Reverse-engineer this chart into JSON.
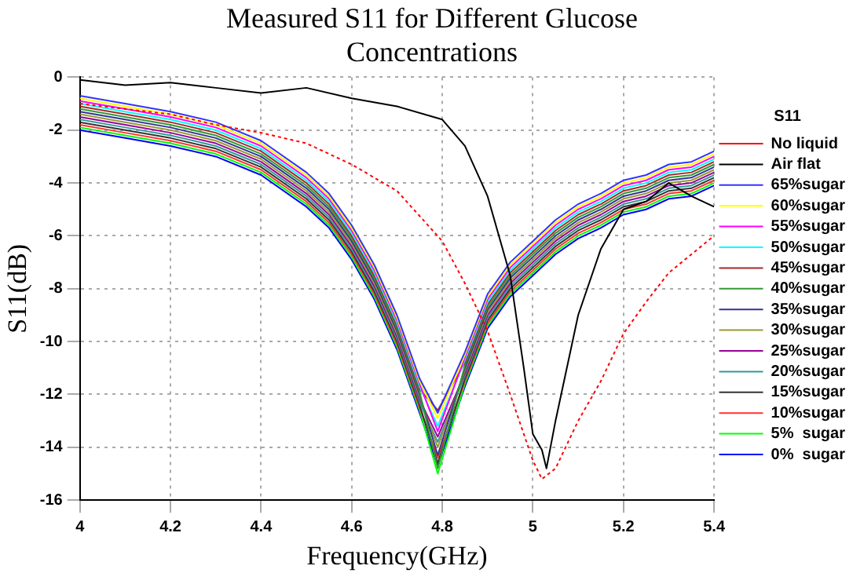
{
  "chart_data": {
    "type": "line",
    "title": "Measured S11 for Different Glucose Concentrations",
    "xlabel": "Frequency(GHz)",
    "ylabel": "S11(dB)",
    "legend_title": "S11",
    "legend": "right",
    "grid": true,
    "marker": "none",
    "xlim": [
      4,
      5.4
    ],
    "xticks": [
      4,
      4.2,
      4.4,
      4.6,
      4.8,
      5,
      5.2,
      5.4
    ],
    "ylim": [
      -16,
      0
    ],
    "yticks": [
      -16,
      -14,
      -12,
      -10,
      -8,
      -6,
      -4,
      -2,
      0
    ],
    "x": [
      4.0,
      4.1,
      4.2,
      4.3,
      4.4,
      4.5,
      4.55,
      4.6,
      4.65,
      4.7,
      4.75,
      4.79,
      4.85,
      4.9,
      4.95,
      5.0,
      5.05,
      5.1,
      5.15,
      5.2,
      5.25,
      5.3,
      5.35,
      5.4
    ],
    "series": [
      {
        "name": "No liquid",
        "color": "#ff0000",
        "line_style": "dotted",
        "x": [
          4.0,
          4.1,
          4.2,
          4.3,
          4.4,
          4.5,
          4.6,
          4.7,
          4.8,
          4.85,
          4.9,
          4.95,
          5.0,
          5.02,
          5.05,
          5.1,
          5.15,
          5.2,
          5.25,
          5.3,
          5.4
        ],
        "values": [
          -1.0,
          -1.2,
          -1.4,
          -1.8,
          -2.1,
          -2.5,
          -3.3,
          -4.3,
          -6.2,
          -7.8,
          -9.6,
          -12.0,
          -14.5,
          -15.2,
          -14.8,
          -13.0,
          -11.5,
          -9.7,
          -8.5,
          -7.4,
          -6.0
        ]
      },
      {
        "name": "Air flat",
        "color": "#000000",
        "line_style": "solid",
        "x": [
          4.0,
          4.1,
          4.2,
          4.3,
          4.4,
          4.5,
          4.6,
          4.7,
          4.8,
          4.85,
          4.9,
          4.95,
          4.98,
          5.0,
          5.02,
          5.03,
          5.05,
          5.1,
          5.15,
          5.2,
          5.25,
          5.3,
          5.35,
          5.4
        ],
        "values": [
          -0.1,
          -0.3,
          -0.2,
          -0.4,
          -0.6,
          -0.4,
          -0.8,
          -1.1,
          -1.6,
          -2.6,
          -4.5,
          -7.5,
          -11.0,
          -13.5,
          -14.1,
          -14.8,
          -13.0,
          -9.0,
          -6.5,
          -5.0,
          -4.7,
          -4.0,
          -4.5,
          -4.9
        ]
      },
      {
        "name": "65%sugar",
        "color": "#3333ff",
        "line_style": "solid",
        "values": [
          -0.7,
          -1.0,
          -1.3,
          -1.7,
          -2.4,
          -3.6,
          -4.4,
          -5.6,
          -7.1,
          -9.0,
          -11.4,
          -12.7,
          -10.4,
          -8.2,
          -7.0,
          -6.2,
          -5.4,
          -4.8,
          -4.4,
          -3.9,
          -3.7,
          -3.3,
          -3.2,
          -2.8
        ]
      },
      {
        "name": "60%sugar",
        "color": "#ffff00",
        "line_style": "solid",
        "values": [
          -0.8,
          -1.1,
          -1.4,
          -1.8,
          -2.5,
          -3.7,
          -4.5,
          -5.7,
          -7.2,
          -9.1,
          -11.5,
          -12.9,
          -10.5,
          -8.3,
          -7.1,
          -6.3,
          -5.5,
          -4.9,
          -4.5,
          -4.0,
          -3.8,
          -3.4,
          -3.3,
          -2.9
        ]
      },
      {
        "name": "55%sugar",
        "color": "#ff00ff",
        "line_style": "solid",
        "values": [
          -0.9,
          -1.2,
          -1.5,
          -1.9,
          -2.6,
          -3.8,
          -4.6,
          -5.8,
          -7.3,
          -9.2,
          -11.6,
          -13.4,
          -10.6,
          -8.4,
          -7.2,
          -6.4,
          -5.6,
          -5.0,
          -4.6,
          -4.1,
          -3.9,
          -3.5,
          -3.4,
          -3.0
        ]
      },
      {
        "name": "50%sugar",
        "color": "#00ffff",
        "line_style": "solid",
        "values": [
          -1.0,
          -1.3,
          -1.6,
          -2.0,
          -2.7,
          -3.9,
          -4.7,
          -5.9,
          -7.4,
          -9.3,
          -11.7,
          -13.2,
          -10.7,
          -8.5,
          -7.3,
          -6.5,
          -5.7,
          -5.1,
          -4.7,
          -4.2,
          -4.0,
          -3.6,
          -3.5,
          -3.1
        ]
      },
      {
        "name": "45%sugar",
        "color": "#a52a2a",
        "line_style": "solid",
        "values": [
          -1.1,
          -1.4,
          -1.7,
          -2.1,
          -2.8,
          -4.0,
          -4.8,
          -6.0,
          -7.5,
          -9.4,
          -11.8,
          -12.6,
          -10.8,
          -8.6,
          -7.4,
          -6.6,
          -5.8,
          -5.2,
          -4.8,
          -4.3,
          -4.1,
          -3.7,
          -3.6,
          -3.2
        ]
      },
      {
        "name": "40%sugar",
        "color": "#339933",
        "line_style": "solid",
        "values": [
          -1.2,
          -1.5,
          -1.8,
          -2.2,
          -2.9,
          -4.1,
          -4.9,
          -6.1,
          -7.6,
          -9.5,
          -11.9,
          -14.8,
          -10.9,
          -8.7,
          -7.5,
          -6.7,
          -5.9,
          -5.3,
          -4.9,
          -4.4,
          -4.2,
          -3.8,
          -3.7,
          -3.3
        ]
      },
      {
        "name": "35%sugar",
        "color": "#333399",
        "line_style": "solid",
        "values": [
          -1.3,
          -1.6,
          -1.9,
          -2.3,
          -3.0,
          -4.2,
          -5.0,
          -6.2,
          -7.7,
          -9.6,
          -12.0,
          -14.3,
          -11.0,
          -8.8,
          -7.6,
          -6.8,
          -6.0,
          -5.4,
          -5.0,
          -4.5,
          -4.3,
          -3.9,
          -3.8,
          -3.4
        ]
      },
      {
        "name": "30%sugar",
        "color": "#999933",
        "line_style": "solid",
        "values": [
          -1.4,
          -1.7,
          -2.0,
          -2.4,
          -3.1,
          -4.3,
          -5.1,
          -6.3,
          -7.8,
          -9.7,
          -12.1,
          -14.0,
          -11.1,
          -8.9,
          -7.7,
          -6.9,
          -6.1,
          -5.5,
          -5.1,
          -4.6,
          -4.4,
          -4.0,
          -3.9,
          -3.5
        ]
      },
      {
        "name": "25%sugar",
        "color": "#990099",
        "line_style": "solid",
        "values": [
          -1.5,
          -1.8,
          -2.1,
          -2.5,
          -3.2,
          -4.4,
          -5.2,
          -6.4,
          -7.9,
          -9.8,
          -12.2,
          -13.6,
          -11.2,
          -9.0,
          -7.8,
          -7.0,
          -6.2,
          -5.6,
          -5.2,
          -4.7,
          -4.5,
          -4.1,
          -4.0,
          -3.6
        ]
      },
      {
        "name": "20%sugar",
        "color": "#339999",
        "line_style": "solid",
        "values": [
          -1.6,
          -1.9,
          -2.2,
          -2.6,
          -3.3,
          -4.5,
          -5.3,
          -6.5,
          -8.0,
          -9.9,
          -12.3,
          -13.8,
          -11.3,
          -9.1,
          -7.9,
          -7.1,
          -6.3,
          -5.7,
          -5.3,
          -4.8,
          -4.6,
          -4.2,
          -4.1,
          -3.7
        ]
      },
      {
        "name": "15%sugar",
        "color": "#333333",
        "line_style": "solid",
        "values": [
          -1.7,
          -2.0,
          -2.3,
          -2.7,
          -3.4,
          -4.6,
          -5.4,
          -6.6,
          -8.1,
          -10.0,
          -12.4,
          -14.6,
          -11.4,
          -9.2,
          -8.0,
          -7.2,
          -6.4,
          -5.8,
          -5.4,
          -4.9,
          -4.7,
          -4.3,
          -4.2,
          -3.8
        ]
      },
      {
        "name": "10%sugar",
        "color": "#ff3333",
        "line_style": "solid",
        "values": [
          -1.8,
          -2.1,
          -2.4,
          -2.8,
          -3.5,
          -4.7,
          -5.5,
          -6.7,
          -8.2,
          -10.1,
          -12.5,
          -14.4,
          -11.5,
          -9.3,
          -8.1,
          -7.3,
          -6.5,
          -5.9,
          -5.5,
          -5.0,
          -4.8,
          -4.4,
          -4.3,
          -3.9
        ]
      },
      {
        "name": "5%  sugar",
        "color": "#00ff00",
        "line_style": "solid",
        "values": [
          -1.9,
          -2.2,
          -2.5,
          -2.9,
          -3.6,
          -4.8,
          -5.6,
          -6.8,
          -8.3,
          -10.2,
          -12.6,
          -15.0,
          -11.6,
          -9.4,
          -8.2,
          -7.4,
          -6.6,
          -6.0,
          -5.6,
          -5.1,
          -4.9,
          -4.5,
          -4.4,
          -4.0
        ]
      },
      {
        "name": "0%  sugar",
        "color": "#0000ff",
        "line_style": "solid",
        "values": [
          -2.0,
          -2.3,
          -2.6,
          -3.0,
          -3.7,
          -4.9,
          -5.7,
          -6.9,
          -8.4,
          -10.3,
          -12.7,
          -14.7,
          -11.7,
          -9.5,
          -8.3,
          -7.5,
          -6.7,
          -6.1,
          -5.7,
          -5.2,
          -5.0,
          -4.6,
          -4.5,
          -4.1
        ]
      }
    ]
  }
}
